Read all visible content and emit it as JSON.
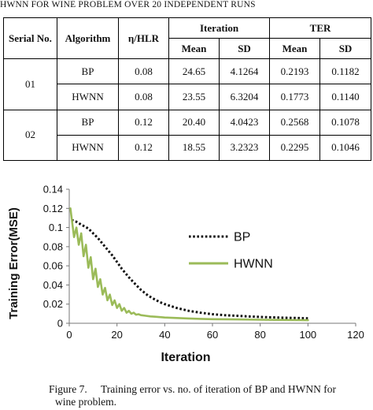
{
  "table_caption": "HWNN FOR WINE PROBLEM OVER 20 INDEPENDENT RUNS",
  "table": {
    "headers": {
      "serial": "Serial No.",
      "algorithm": "Algorithm",
      "eta": "η/HLR",
      "iteration": "Iteration",
      "ter": "TER",
      "mean": "Mean",
      "sd": "SD"
    },
    "groups": [
      {
        "serial": "01",
        "rows": [
          {
            "algorithm": "BP",
            "eta": "0.08",
            "iter_mean": "24.65",
            "iter_sd": "4.1264",
            "ter_mean": "0.2193",
            "ter_sd": "0.1182"
          },
          {
            "algorithm": "HWNN",
            "eta": "0.08",
            "iter_mean": "23.55",
            "iter_sd": "6.3204",
            "ter_mean": "0.1773",
            "ter_sd": "0.1140"
          }
        ]
      },
      {
        "serial": "02",
        "rows": [
          {
            "algorithm": "BP",
            "eta": "0.12",
            "iter_mean": "20.40",
            "iter_sd": "4.0423",
            "ter_mean": "0.2568",
            "ter_sd": "0.1078"
          },
          {
            "algorithm": "HWNN",
            "eta": "0.12",
            "iter_mean": "18.55",
            "iter_sd": "3.2323",
            "ter_mean": "0.2295",
            "ter_sd": "0.1046"
          }
        ]
      }
    ]
  },
  "chart_data": {
    "type": "line",
    "title": "",
    "xlabel": "Iteration",
    "ylabel": "Training Error(MSE)",
    "xlim": [
      0,
      120
    ],
    "ylim": [
      0,
      0.14
    ],
    "xticks": [
      "0",
      "20",
      "40",
      "60",
      "80",
      "100",
      "120"
    ],
    "yticks": [
      "0",
      "0.02",
      "0.04",
      "0.06",
      "0.08",
      "0.1",
      "0.12",
      "0.14"
    ],
    "grid": false,
    "legend_position": "right",
    "series": [
      {
        "name": "BP",
        "color": "#111111",
        "style": "dotted",
        "x": [
          1,
          3,
          5,
          8,
          10,
          12,
          15,
          18,
          20,
          22,
          25,
          28,
          30,
          33,
          35,
          38,
          40,
          45,
          50,
          55,
          60,
          65,
          70,
          75,
          80,
          85,
          90,
          95,
          100
        ],
        "y": [
          0.108,
          0.106,
          0.103,
          0.099,
          0.094,
          0.089,
          0.08,
          0.071,
          0.064,
          0.057,
          0.048,
          0.04,
          0.035,
          0.029,
          0.026,
          0.022,
          0.02,
          0.016,
          0.013,
          0.011,
          0.0095,
          0.0085,
          0.0078,
          0.0072,
          0.0066,
          0.0062,
          0.0058,
          0.0055,
          0.0052
        ]
      },
      {
        "name": "HWNN",
        "color": "#9bbb59",
        "style": "solid",
        "x": [
          0.5,
          1,
          2,
          3,
          4,
          5,
          6,
          7,
          8,
          9,
          10,
          11,
          12,
          13,
          14,
          15,
          16,
          17,
          18,
          19,
          20,
          21,
          22,
          23,
          24,
          25,
          26,
          27,
          28,
          29,
          30,
          32,
          34,
          36,
          38,
          40,
          45,
          50,
          55,
          60,
          70,
          80,
          90,
          100
        ],
        "y": [
          0.12,
          0.11,
          0.09,
          0.1,
          0.082,
          0.094,
          0.07,
          0.082,
          0.058,
          0.069,
          0.046,
          0.057,
          0.038,
          0.046,
          0.03,
          0.037,
          0.024,
          0.03,
          0.019,
          0.024,
          0.016,
          0.02,
          0.013,
          0.016,
          0.011,
          0.013,
          0.01,
          0.011,
          0.009,
          0.0095,
          0.0085,
          0.0078,
          0.0072,
          0.0068,
          0.0064,
          0.006,
          0.0055,
          0.005,
          0.0046,
          0.0043,
          0.004,
          0.0037,
          0.0035,
          0.0032
        ]
      }
    ]
  },
  "figure_caption": {
    "label": "Figure 7.",
    "text_line1": "Training error vs. no. of  iteration of BP and HWNN for",
    "text_line2": "wine problem."
  }
}
